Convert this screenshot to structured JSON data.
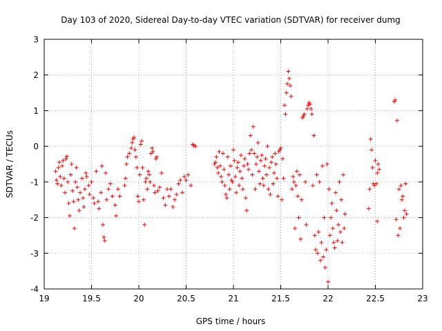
{
  "chart_data": {
    "type": "scatter",
    "title": "Day 103 of 2020, Sidereal Day-to-day VTEC variation (SDTVAR) for receiver dumg",
    "xlabel": "GPS time / hours",
    "ylabel": "SDTVAR / TECUs",
    "xlim": [
      19,
      23
    ],
    "ylim": [
      -4,
      3
    ],
    "xticks": [
      19,
      19.5,
      20,
      20.5,
      21,
      21.5,
      22,
      22.5,
      23
    ],
    "xtick_labels": [
      "19",
      "19.5",
      "20",
      "20.5",
      "21",
      "21.5",
      "22",
      "22.5",
      "23"
    ],
    "yticks": [
      -4,
      -3,
      -2,
      -1,
      0,
      1,
      2,
      3
    ],
    "ytick_labels": [
      "-4",
      "-3",
      "-2",
      "-1",
      "0",
      "1",
      "2",
      "3"
    ],
    "grid": true,
    "marker": "+",
    "color": "#ff0000",
    "series": [
      {
        "name": "SDTVAR",
        "points": [
          [
            19.12,
            -0.7
          ],
          [
            19.13,
            -0.95
          ],
          [
            19.14,
            -1.05
          ],
          [
            19.15,
            -0.6
          ],
          [
            19.16,
            -0.45
          ],
          [
            19.17,
            -0.85
          ],
          [
            19.18,
            -1.1
          ],
          [
            19.19,
            -0.55
          ],
          [
            19.2,
            -0.4
          ],
          [
            19.21,
            -0.9
          ],
          [
            19.22,
            -1.3
          ],
          [
            19.23,
            -0.35
          ],
          [
            19.24,
            -0.28
          ],
          [
            19.25,
            -1.0
          ],
          [
            19.26,
            -1.6
          ],
          [
            19.27,
            -1.95
          ],
          [
            19.28,
            -0.8
          ],
          [
            19.29,
            -0.5
          ],
          [
            19.3,
            -1.25
          ],
          [
            19.31,
            -1.55
          ],
          [
            19.32,
            -2.3
          ],
          [
            19.33,
            -1.0
          ],
          [
            19.34,
            -0.6
          ],
          [
            19.35,
            -1.15
          ],
          [
            19.36,
            -1.5
          ],
          [
            19.37,
            -1.8
          ],
          [
            19.38,
            -1.3
          ],
          [
            19.4,
            -0.9
          ],
          [
            19.41,
            -1.45
          ],
          [
            19.42,
            -1.7
          ],
          [
            19.43,
            -1.2
          ],
          [
            19.44,
            -0.75
          ],
          [
            19.45,
            -0.85
          ],
          [
            19.47,
            -1.1
          ],
          [
            19.48,
            -1.35
          ],
          [
            19.5,
            -1.0
          ],
          [
            19.52,
            -1.45
          ],
          [
            19.53,
            -1.6
          ],
          [
            19.55,
            -0.7
          ],
          [
            19.57,
            -1.55
          ],
          [
            19.58,
            -1.75
          ],
          [
            19.6,
            -1.3
          ],
          [
            19.61,
            -0.55
          ],
          [
            19.62,
            -2.2
          ],
          [
            19.63,
            -2.55
          ],
          [
            19.64,
            -2.65
          ],
          [
            19.65,
            -0.75
          ],
          [
            19.66,
            -1.5
          ],
          [
            19.68,
            -1.2
          ],
          [
            19.7,
            -1.05
          ],
          [
            19.72,
            -1.4
          ],
          [
            19.75,
            -1.65
          ],
          [
            19.76,
            -1.95
          ],
          [
            19.78,
            -1.2
          ],
          [
            19.8,
            -1.4
          ],
          [
            19.85,
            -1.1
          ],
          [
            19.86,
            -0.9
          ],
          [
            19.87,
            -0.5
          ],
          [
            19.88,
            -0.3
          ],
          [
            19.9,
            -0.2
          ],
          [
            19.92,
            -0.05
          ],
          [
            19.93,
            0.1
          ],
          [
            19.94,
            0.2
          ],
          [
            19.95,
            0.25
          ],
          [
            19.96,
            -0.1
          ],
          [
            19.97,
            -0.3
          ],
          [
            19.98,
            -0.6
          ],
          [
            19.99,
            -1.4
          ],
          [
            20.0,
            -1.55
          ],
          [
            20.01,
            -0.8
          ],
          [
            20.02,
            0.05
          ],
          [
            20.03,
            0.15
          ],
          [
            20.04,
            -0.6
          ],
          [
            20.05,
            -1.5
          ],
          [
            20.06,
            -2.2
          ],
          [
            20.07,
            -1.0
          ],
          [
            20.08,
            -0.9
          ],
          [
            20.09,
            -1.2
          ],
          [
            20.1,
            -0.7
          ],
          [
            20.11,
            -0.8
          ],
          [
            20.12,
            -1.0
          ],
          [
            20.13,
            -0.2
          ],
          [
            20.14,
            -0.05
          ],
          [
            20.15,
            -0.15
          ],
          [
            20.16,
            -1.1
          ],
          [
            20.17,
            -1.3
          ],
          [
            20.18,
            -0.35
          ],
          [
            20.19,
            -0.3
          ],
          [
            20.2,
            -1.25
          ],
          [
            20.22,
            -1.15
          ],
          [
            20.24,
            -0.75
          ],
          [
            20.26,
            -1.45
          ],
          [
            20.28,
            -1.65
          ],
          [
            20.3,
            -1.2
          ],
          [
            20.32,
            -1.4
          ],
          [
            20.34,
            -1.2
          ],
          [
            20.36,
            -1.7
          ],
          [
            20.38,
            -1.5
          ],
          [
            20.4,
            -1.35
          ],
          [
            20.42,
            -1.05
          ],
          [
            20.44,
            -0.95
          ],
          [
            20.46,
            -1.3
          ],
          [
            20.48,
            -0.85
          ],
          [
            20.5,
            -0.95
          ],
          [
            20.52,
            -0.8
          ],
          [
            20.55,
            -1.1
          ],
          [
            20.57,
            0.05
          ],
          [
            20.58,
            0.02
          ],
          [
            20.6,
            0.0
          ],
          [
            20.8,
            -0.5
          ],
          [
            20.81,
            -0.45
          ],
          [
            20.82,
            -0.3
          ],
          [
            20.83,
            -0.6
          ],
          [
            20.84,
            -0.75
          ],
          [
            20.85,
            -0.15
          ],
          [
            20.86,
            -0.55
          ],
          [
            20.87,
            -0.85
          ],
          [
            20.88,
            -1.0
          ],
          [
            20.89,
            -0.2
          ],
          [
            20.9,
            -0.65
          ],
          [
            20.91,
            -1.1
          ],
          [
            20.92,
            -1.35
          ],
          [
            20.93,
            -1.45
          ],
          [
            20.94,
            -0.3
          ],
          [
            20.95,
            -0.8
          ],
          [
            20.96,
            -1.2
          ],
          [
            20.97,
            -0.55
          ],
          [
            20.98,
            -0.95
          ],
          [
            20.99,
            -1.0
          ],
          [
            21.0,
            -0.1
          ],
          [
            21.01,
            -0.4
          ],
          [
            21.02,
            -0.85
          ],
          [
            21.03,
            -1.3
          ],
          [
            21.04,
            -0.6
          ],
          [
            21.05,
            -0.45
          ],
          [
            21.06,
            -1.1
          ],
          [
            21.07,
            -0.7
          ],
          [
            21.08,
            -0.25
          ],
          [
            21.09,
            -0.9
          ],
          [
            21.1,
            -1.2
          ],
          [
            21.11,
            -0.55
          ],
          [
            21.12,
            -0.35
          ],
          [
            21.13,
            -1.45
          ],
          [
            21.14,
            -1.8
          ],
          [
            21.15,
            -0.5
          ],
          [
            21.16,
            -0.65
          ],
          [
            21.17,
            -0.2
          ],
          [
            21.18,
            0.3
          ],
          [
            21.19,
            -0.1
          ],
          [
            21.2,
            -0.8
          ],
          [
            21.21,
            0.55
          ],
          [
            21.22,
            -0.2
          ],
          [
            21.23,
            -1.2
          ],
          [
            21.24,
            -0.5
          ],
          [
            21.25,
            -0.3
          ],
          [
            21.26,
            0.1
          ],
          [
            21.27,
            -0.7
          ],
          [
            21.28,
            -1.05
          ],
          [
            21.29,
            -0.4
          ],
          [
            21.3,
            -0.25
          ],
          [
            21.31,
            -0.9
          ],
          [
            21.32,
            -1.1
          ],
          [
            21.33,
            -0.55
          ],
          [
            21.34,
            -0.35
          ],
          [
            21.35,
            -0.8
          ],
          [
            21.36,
            0.0
          ],
          [
            21.37,
            -1.2
          ],
          [
            21.38,
            -0.6
          ],
          [
            21.39,
            -1.35
          ],
          [
            21.4,
            -0.45
          ],
          [
            21.41,
            -0.3
          ],
          [
            21.42,
            -1.05
          ],
          [
            21.43,
            -0.75
          ],
          [
            21.44,
            -0.2
          ],
          [
            21.45,
            -0.5
          ],
          [
            21.46,
            -0.9
          ],
          [
            21.47,
            -1.4
          ],
          [
            21.48,
            -0.15
          ],
          [
            21.49,
            -0.1
          ],
          [
            21.5,
            -0.05
          ],
          [
            21.51,
            -1.5
          ],
          [
            21.52,
            -0.35
          ],
          [
            21.53,
            -0.9
          ],
          [
            21.54,
            1.15
          ],
          [
            21.55,
            0.9
          ],
          [
            21.56,
            1.5
          ],
          [
            21.57,
            1.75
          ],
          [
            21.58,
            2.1
          ],
          [
            21.59,
            1.9
          ],
          [
            21.6,
            1.7
          ],
          [
            21.61,
            1.4
          ],
          [
            21.62,
            -1.2
          ],
          [
            21.63,
            -0.85
          ],
          [
            21.64,
            -1.0
          ],
          [
            21.65,
            -2.3
          ],
          [
            21.66,
            -1.1
          ],
          [
            21.67,
            -0.7
          ],
          [
            21.68,
            -1.4
          ],
          [
            21.69,
            -2.0
          ],
          [
            21.7,
            -0.8
          ],
          [
            21.71,
            -2.6
          ],
          [
            21.72,
            -1.5
          ],
          [
            21.73,
            0.8
          ],
          [
            21.74,
            0.85
          ],
          [
            21.75,
            0.9
          ],
          [
            21.76,
            -1.0
          ],
          [
            21.77,
            -2.2
          ],
          [
            21.78,
            1.05
          ],
          [
            21.79,
            1.15
          ],
          [
            21.8,
            1.22
          ],
          [
            21.81,
            1.18
          ],
          [
            21.82,
            1.05
          ],
          [
            21.83,
            0.9
          ],
          [
            21.84,
            -1.1
          ],
          [
            21.85,
            0.3
          ],
          [
            21.86,
            -2.5
          ],
          [
            21.87,
            -2.9
          ],
          [
            21.88,
            -0.8
          ],
          [
            21.89,
            -3.0
          ],
          [
            21.9,
            -2.4
          ],
          [
            21.91,
            -1.0
          ],
          [
            21.92,
            -3.2
          ],
          [
            21.93,
            -2.7
          ],
          [
            21.94,
            -0.55
          ],
          [
            21.95,
            -3.1
          ],
          [
            21.96,
            -2.0
          ],
          [
            21.97,
            -3.4
          ],
          [
            21.98,
            -2.9
          ],
          [
            21.99,
            -0.5
          ],
          [
            22.0,
            -3.8
          ],
          [
            22.01,
            -1.2
          ],
          [
            22.02,
            -2.5
          ],
          [
            22.03,
            -2.0
          ],
          [
            22.04,
            -1.6
          ],
          [
            22.05,
            -2.3
          ],
          [
            22.06,
            -2.7
          ],
          [
            22.07,
            -2.85
          ],
          [
            22.08,
            -1.3
          ],
          [
            22.09,
            -1.8
          ],
          [
            22.1,
            -2.65
          ],
          [
            22.11,
            -2.2
          ],
          [
            22.12,
            -1.0
          ],
          [
            22.13,
            -2.4
          ],
          [
            22.14,
            -1.5
          ],
          [
            22.15,
            -2.7
          ],
          [
            22.16,
            -0.8
          ],
          [
            22.17,
            -2.3
          ],
          [
            22.18,
            -1.9
          ],
          [
            22.43,
            -1.75
          ],
          [
            22.44,
            -1.2
          ],
          [
            22.45,
            0.2
          ],
          [
            22.46,
            -0.1
          ],
          [
            22.47,
            -0.6
          ],
          [
            22.48,
            -1.05
          ],
          [
            22.49,
            -1.1
          ],
          [
            22.5,
            -0.4
          ],
          [
            22.51,
            -1.05
          ],
          [
            22.52,
            -0.75
          ],
          [
            22.53,
            -0.5
          ],
          [
            22.54,
            -0.65
          ],
          [
            22.52,
            -2.1
          ],
          [
            22.7,
            1.25
          ],
          [
            22.71,
            1.3
          ],
          [
            22.72,
            -2.05
          ],
          [
            22.73,
            0.72
          ],
          [
            22.74,
            -2.5
          ],
          [
            22.75,
            -1.2
          ],
          [
            22.76,
            -2.3
          ],
          [
            22.77,
            -1.1
          ],
          [
            22.78,
            -1.5
          ],
          [
            22.79,
            -1.4
          ],
          [
            22.8,
            -2.0
          ],
          [
            22.81,
            -1.8
          ],
          [
            22.82,
            -1.05
          ],
          [
            22.83,
            -1.9
          ]
        ]
      }
    ]
  }
}
